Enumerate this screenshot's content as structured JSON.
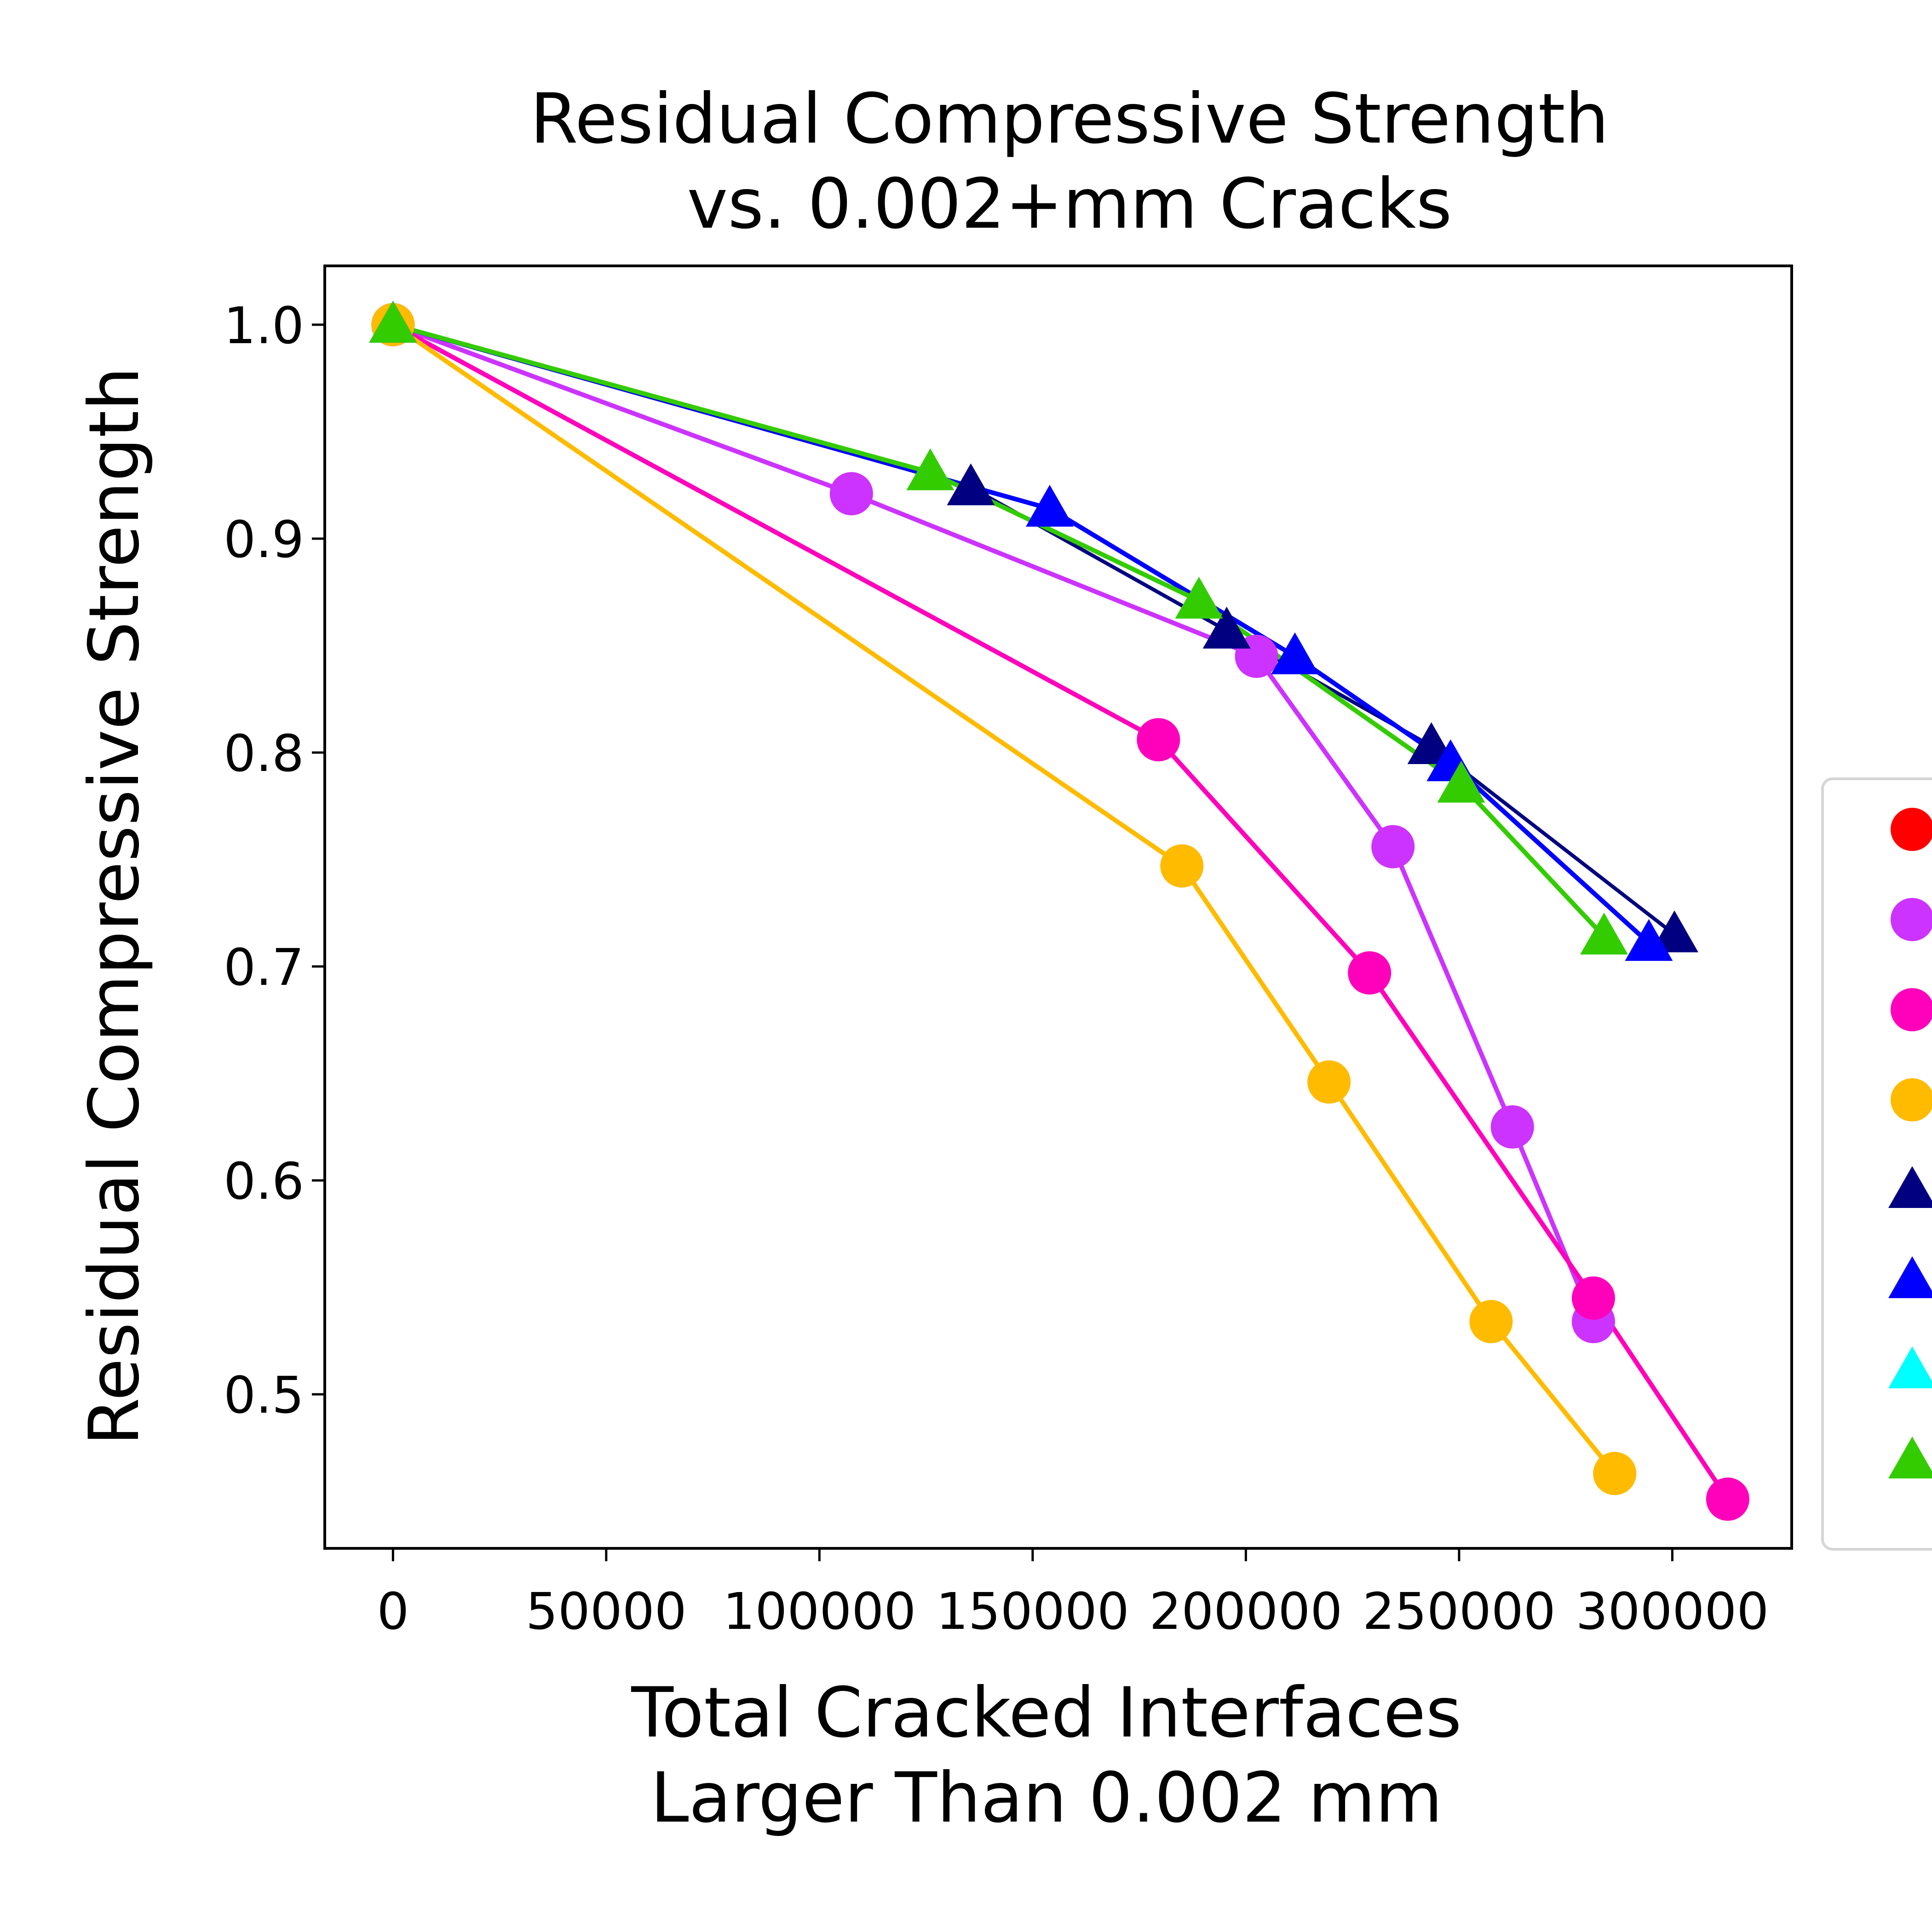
{
  "chart_data": {
    "type": "line",
    "title": "Residual Compressive Strength\nvs. 0.002+mm Cracks",
    "xlabel": "Total Cracked Interfaces\nLarger Than 0.002 mm",
    "ylabel": "Residual Compressive Strength",
    "xlim": [
      -16000,
      328000
    ],
    "ylim": [
      0.428,
      1.0275
    ],
    "xticks": [
      0,
      50000,
      100000,
      150000,
      200000,
      250000,
      300000
    ],
    "xtick_labels": [
      "0",
      "50000",
      "100000",
      "150000",
      "200000",
      "250000",
      "300000"
    ],
    "yticks": [
      0.5,
      0.6,
      0.7,
      0.8,
      0.9,
      1.0
    ],
    "ytick_labels": [
      "0.5",
      "0.6",
      "0.7",
      "0.8",
      "0.9",
      "1.0"
    ],
    "grid": false,
    "legend": {
      "placement": "right, outside plot (clipped)",
      "clipped": true
    },
    "series": [
      {
        "color": "#ff0000",
        "marker": "circle",
        "x": [],
        "y": []
      },
      {
        "color": "#cc33ff",
        "marker": "circle",
        "x": [
          0,
          107500,
          202500,
          234500,
          262500,
          281500
        ],
        "y": [
          1.0,
          0.921,
          0.845,
          0.756,
          0.625,
          0.534
        ]
      },
      {
        "color": "#ff00bb",
        "marker": "circle",
        "x": [
          0,
          179500,
          229000,
          281500,
          313000
        ],
        "y": [
          1.0,
          0.806,
          0.697,
          0.545,
          0.451
        ]
      },
      {
        "color": "#ffbb00",
        "marker": "circle",
        "x": [
          0,
          185000,
          219500,
          257500,
          286500
        ],
        "y": [
          1.0,
          0.747,
          0.646,
          0.534,
          0.463
        ]
      },
      {
        "color": "#000080",
        "marker": "triangle",
        "x": [
          0,
          135500,
          195500,
          243500,
          300500
        ],
        "y": [
          1.0,
          0.924,
          0.857,
          0.803,
          0.715
        ]
      },
      {
        "color": "#0000ff",
        "marker": "triangle",
        "x": [
          0,
          154000,
          211500,
          248000,
          294500
        ],
        "y": [
          1.0,
          0.914,
          0.845,
          0.795,
          0.711
        ]
      },
      {
        "color": "#00ffff",
        "marker": "triangle",
        "x": [],
        "y": []
      },
      {
        "color": "#33cc00",
        "marker": "triangle",
        "x": [
          0,
          126000,
          189000,
          250500,
          284000
        ],
        "y": [
          1.0,
          0.931,
          0.871,
          0.785,
          0.714
        ]
      }
    ]
  }
}
